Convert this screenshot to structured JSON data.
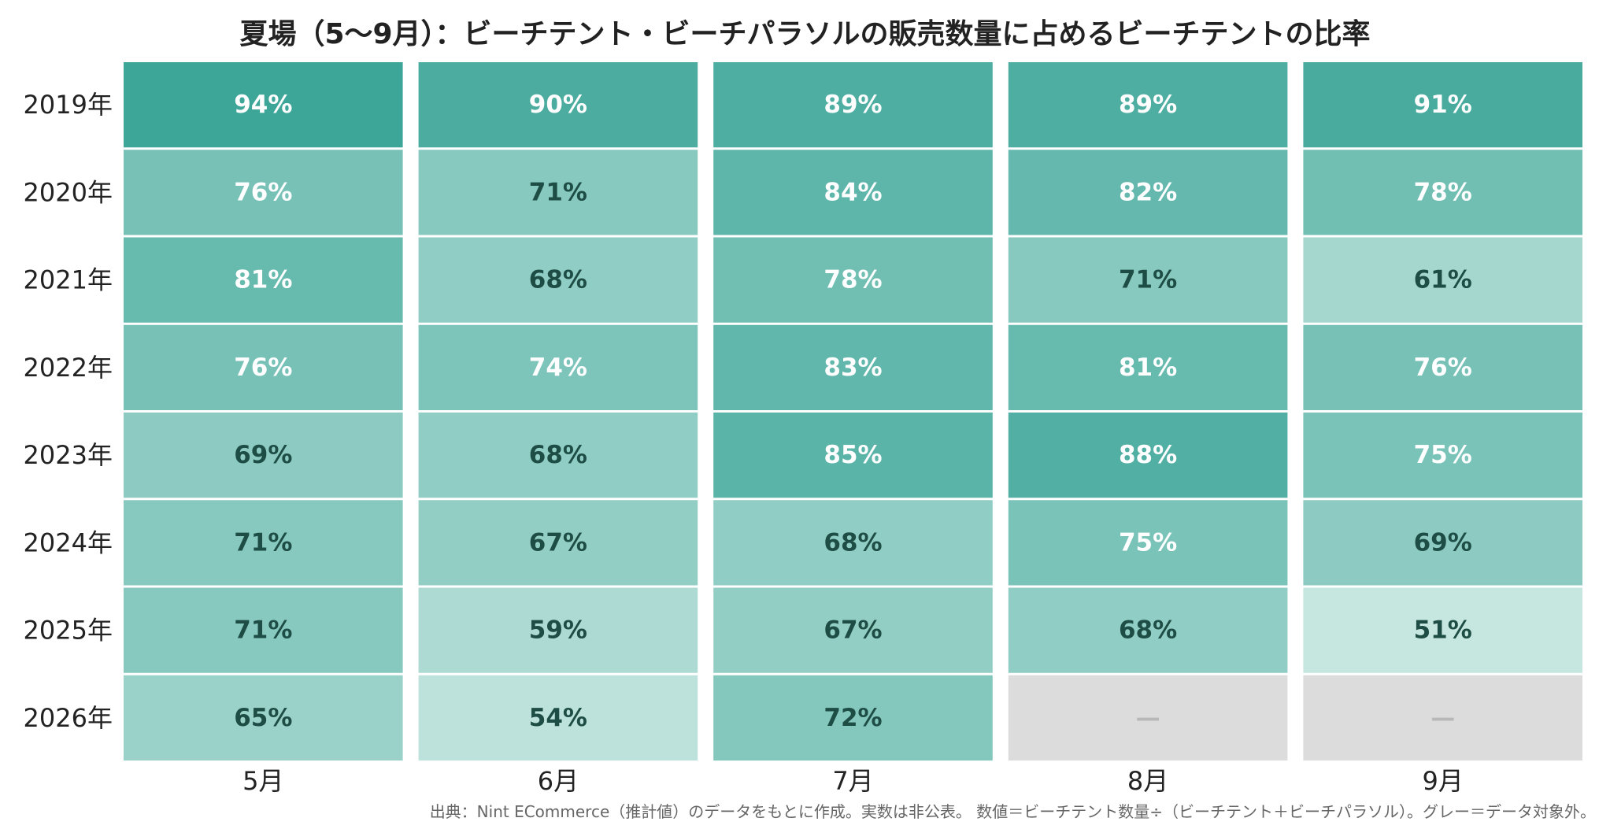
{
  "chart_data": {
    "type": "heatmap",
    "title": "夏場（5～9月）：ビーチテント・ビーチパラソルの販売数量に占めるビーチテントの比率",
    "rows": [
      "2019年",
      "2020年",
      "2021年",
      "2022年",
      "2023年",
      "2024年",
      "2025年",
      "2026年"
    ],
    "columns": [
      "5月",
      "6月",
      "7月",
      "8月",
      "9月"
    ],
    "values": [
      [
        94,
        90,
        89,
        89,
        91
      ],
      [
        76,
        71,
        84,
        82,
        78
      ],
      [
        81,
        68,
        78,
        71,
        61
      ],
      [
        76,
        74,
        83,
        81,
        76
      ],
      [
        69,
        68,
        85,
        88,
        75
      ],
      [
        71,
        67,
        68,
        75,
        69
      ],
      [
        71,
        59,
        67,
        68,
        51
      ],
      [
        65,
        54,
        72,
        null,
        null
      ]
    ],
    "value_suffix": "%",
    "missing_label": "—",
    "color_scale": {
      "min_value": 45,
      "max_value": 95,
      "low_color": "#d9efea",
      "high_color": "#3ba597",
      "missing_color": "#dcdcdc"
    },
    "label_color_dark": "#1e4d45",
    "label_color_light": "#ffffff",
    "label_light_threshold": 74,
    "source": "出典：Nint ECommerce（推計値）のデータをもとに作成。実数は非公表。 数値＝ビーチテント数量÷（ビーチテント＋ビーチパラソル）。グレー＝データ対象外。"
  }
}
